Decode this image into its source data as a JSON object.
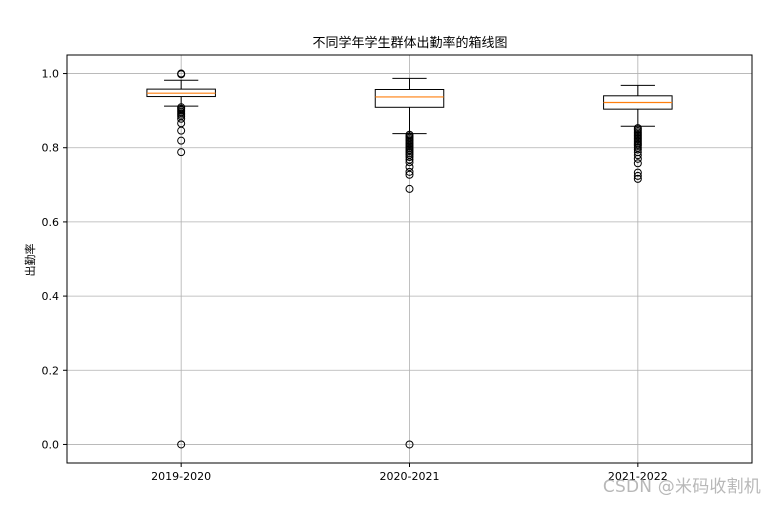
{
  "chart_data": {
    "type": "box",
    "title": "不同学年学生群体出勤率的箱线图",
    "xlabel": "",
    "ylabel": "出勤率",
    "ylim": [
      -0.05,
      1.05
    ],
    "yticks": [
      0.0,
      0.2,
      0.4,
      0.6,
      0.8,
      1.0
    ],
    "ytick_labels": [
      "0.0",
      "0.2",
      "0.4",
      "0.6",
      "0.8",
      "1.0"
    ],
    "grid": true,
    "categories": [
      "2019-2020",
      "2020-2021",
      "2021-2022"
    ],
    "boxes": [
      {
        "whisker_low": 0.912,
        "q1": 0.938,
        "median": 0.947,
        "q3": 0.958,
        "whisker_high": 0.982,
        "outliers": [
          0.0,
          1.0,
          0.998,
          0.909,
          0.905,
          0.901,
          0.897,
          0.893,
          0.889,
          0.885,
          0.878,
          0.866,
          0.846,
          0.819,
          0.788
        ]
      },
      {
        "whisker_low": 0.838,
        "q1": 0.909,
        "median": 0.937,
        "q3": 0.957,
        "whisker_high": 0.987,
        "outliers": [
          0.0,
          0.835,
          0.831,
          0.827,
          0.823,
          0.819,
          0.815,
          0.811,
          0.807,
          0.803,
          0.799,
          0.795,
          0.791,
          0.786,
          0.781,
          0.775,
          0.768,
          0.761,
          0.748,
          0.735,
          0.727,
          0.689
        ]
      },
      {
        "whisker_low": 0.858,
        "q1": 0.904,
        "median": 0.922,
        "q3": 0.94,
        "whisker_high": 0.968,
        "outliers": [
          0.853,
          0.849,
          0.845,
          0.841,
          0.837,
          0.833,
          0.829,
          0.825,
          0.821,
          0.817,
          0.813,
          0.809,
          0.805,
          0.8,
          0.795,
          0.788,
          0.78,
          0.77,
          0.758,
          0.733,
          0.724,
          0.716
        ]
      }
    ],
    "colors": {
      "box": "#000000",
      "median": "#ff7f0e",
      "grid": "#b0b0b0"
    }
  },
  "watermark": "CSDN @米码收割机"
}
